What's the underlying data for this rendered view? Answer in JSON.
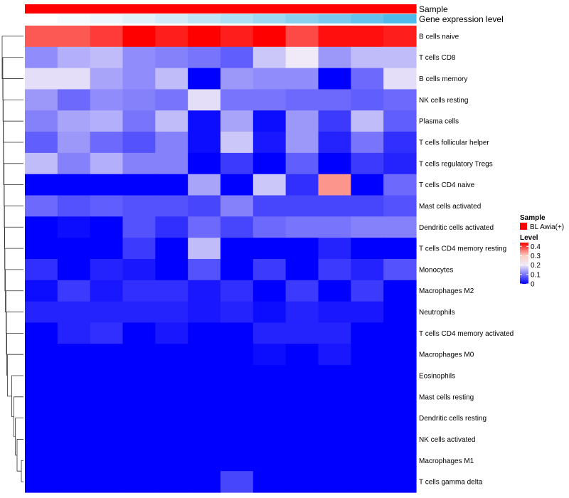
{
  "chart_data": {
    "type": "heatmap",
    "title": "",
    "rows": [
      "B cells naive",
      "T cells CD8",
      "B cells memory",
      "NK cells resting",
      "Plasma cells",
      "T cells follicular helper",
      "T cells regulatory  Tregs",
      "T cells CD4 naive",
      "Mast cells activated",
      "Dendritic cells activated",
      "T cells CD4 memory resting",
      "Monocytes",
      "Macrophages M2",
      "Neutrophils",
      "T cells CD4 memory activated",
      "Macrophages M0",
      "Eosinophils",
      "Mast cells resting",
      "Dendritic cells resting",
      "NK cells activated",
      "Macrophages M1",
      "T cells gamma delta"
    ],
    "n_columns": 12,
    "values": [
      [
        0.38,
        0.38,
        0.4,
        0.44,
        0.42,
        0.44,
        0.42,
        0.44,
        0.39,
        0.43,
        0.43,
        0.42
      ],
      [
        0.12,
        0.15,
        0.16,
        0.12,
        0.11,
        0.1,
        0.08,
        0.17,
        0.2,
        0.13,
        0.16,
        0.16
      ],
      [
        0.19,
        0.19,
        0.14,
        0.12,
        0.16,
        0.0,
        0.13,
        0.12,
        0.12,
        0.0,
        0.09,
        0.19
      ],
      [
        0.13,
        0.09,
        0.12,
        0.11,
        0.1,
        0.19,
        0.1,
        0.1,
        0.09,
        0.09,
        0.08,
        0.09
      ],
      [
        0.11,
        0.14,
        0.15,
        0.1,
        0.16,
        0.01,
        0.14,
        0.01,
        0.13,
        0.05,
        0.16,
        0.08
      ],
      [
        0.08,
        0.13,
        0.09,
        0.07,
        0.11,
        0.01,
        0.17,
        0.02,
        0.13,
        0.03,
        0.1,
        0.04
      ],
      [
        0.16,
        0.11,
        0.15,
        0.11,
        0.11,
        0.0,
        0.05,
        0.0,
        0.08,
        0.0,
        0.05,
        0.03
      ],
      [
        0.0,
        0.0,
        0.0,
        0.0,
        0.0,
        0.14,
        0.0,
        0.17,
        0.04,
        0.34,
        0.0,
        0.09
      ],
      [
        0.09,
        0.07,
        0.08,
        0.07,
        0.07,
        0.06,
        0.11,
        0.06,
        0.06,
        0.06,
        0.06,
        0.07
      ],
      [
        0.0,
        0.01,
        0.0,
        0.07,
        0.04,
        0.09,
        0.06,
        0.09,
        0.1,
        0.1,
        0.11,
        0.11
      ],
      [
        0.0,
        0.0,
        0.0,
        0.05,
        0.0,
        0.16,
        0.0,
        0.0,
        0.0,
        0.03,
        0.0,
        0.0
      ],
      [
        0.04,
        0.0,
        0.03,
        0.02,
        0.0,
        0.07,
        0.0,
        0.05,
        0.0,
        0.05,
        0.03,
        0.07
      ],
      [
        0.01,
        0.05,
        0.02,
        0.04,
        0.04,
        0.02,
        0.04,
        0.0,
        0.05,
        0.0,
        0.05,
        0.0
      ],
      [
        0.03,
        0.03,
        0.03,
        0.03,
        0.03,
        0.02,
        0.03,
        0.01,
        0.03,
        0.02,
        0.02,
        0.0
      ],
      [
        0.0,
        0.03,
        0.04,
        0.0,
        0.02,
        0.0,
        0.0,
        0.03,
        0.03,
        0.03,
        0.0,
        0.0
      ],
      [
        0.0,
        0.0,
        0.0,
        0.0,
        0.0,
        0.0,
        0.0,
        0.01,
        0.0,
        0.02,
        0.0,
        0.0
      ],
      [
        0.0,
        0.0,
        0.0,
        0.0,
        0.0,
        0.0,
        0.0,
        0.0,
        0.0,
        0.0,
        0.0,
        0.0
      ],
      [
        0.0,
        0.0,
        0.0,
        0.0,
        0.0,
        0.0,
        0.0,
        0.0,
        0.0,
        0.0,
        0.0,
        0.0
      ],
      [
        0.0,
        0.0,
        0.0,
        0.0,
        0.0,
        0.0,
        0.0,
        0.0,
        0.0,
        0.0,
        0.0,
        0.0
      ],
      [
        0.0,
        0.0,
        0.0,
        0.0,
        0.0,
        0.0,
        0.0,
        0.0,
        0.0,
        0.0,
        0.0,
        0.0
      ],
      [
        0.0,
        0.0,
        0.0,
        0.0,
        0.0,
        0.0,
        0.0,
        0.0,
        0.0,
        0.0,
        0.0,
        0.0
      ],
      [
        0.0,
        0.0,
        0.0,
        0.0,
        0.0,
        0.0,
        0.06,
        0.0,
        0.0,
        0.0,
        0.0,
        0.0
      ]
    ],
    "color_scale": {
      "stops": [
        {
          "value": 0.0,
          "color": "#0000ff"
        },
        {
          "value": 0.2,
          "color": "#f0eaf8"
        },
        {
          "value": 0.3,
          "color": "#fbd0c4"
        },
        {
          "value": 0.44,
          "color": "#ff0000"
        }
      ],
      "legend_title": "Level",
      "legend_ticks": [
        0.4,
        0.3,
        0.2,
        0.1,
        0
      ]
    },
    "annotations": [
      {
        "label": "Sample",
        "colors": [
          "#ff0000",
          "#ff0000",
          "#ff0000",
          "#ff0000",
          "#ff0000",
          "#ff0000",
          "#ff0000",
          "#ff0000",
          "#ff0000",
          "#ff0000",
          "#ff0000",
          "#ff0000"
        ]
      },
      {
        "label": "Gene expression level",
        "colors": [
          "#ffffff",
          "#f6fbfe",
          "#ecf6fc",
          "#e0f1fa",
          "#d1ebf8",
          "#bfe4f6",
          "#ade0f4",
          "#9cd8f2",
          "#8ad1f0",
          "#79caee",
          "#64c2ec",
          "#50baea"
        ]
      }
    ],
    "legend": {
      "sample_title": "Sample",
      "sample_items": [
        {
          "label": "BL Awia(+)",
          "color": "#ff0000"
        }
      ]
    },
    "dendrogram": {
      "merge_heights": [
        0.1,
        0.3,
        0.38,
        0.45,
        0.55,
        0.75,
        0.78,
        0.8,
        0.82,
        0.85,
        0.87,
        0.88,
        0.89,
        0.9,
        0.91,
        0.93,
        0.94,
        0.95,
        0.96,
        0.97,
        1.0
      ]
    }
  }
}
